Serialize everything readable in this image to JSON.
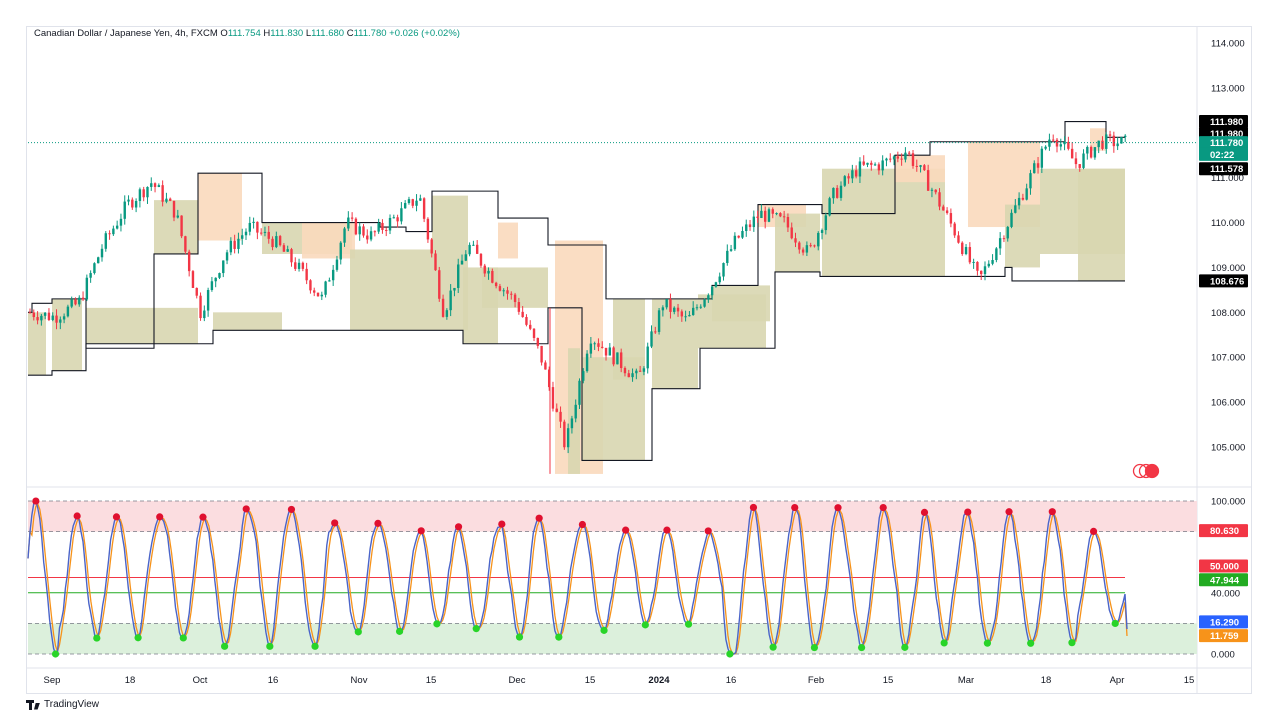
{
  "header": {
    "symbol": "Canadian Dollar / Japanese Yen, 4h, FXCM",
    "open_label": "O",
    "open": "111.754",
    "high_label": "H",
    "high": "111.830",
    "low_label": "L",
    "low": "111.680",
    "close_label": "C",
    "close": "111.780",
    "change": "+0.026 (+0.02%)"
  },
  "colors": {
    "bull": "#089981",
    "bear": "#f23645",
    "supply_zone": "#f9d9bc",
    "demand_zone": "#d8d6b0",
    "rsi_line": "#4a64c9",
    "signal_line": "#f7931a",
    "overbought_zone": "#fbdde0",
    "oversold_zone": "#dcf0dc",
    "midline_red": "#f23645",
    "midline_green": "#22ab22"
  },
  "price_axis": {
    "ticks": [
      "114.000",
      "113.000",
      "111.000",
      "110.000",
      "109.000",
      "108.000",
      "107.000",
      "106.000",
      "105.000"
    ],
    "tags": [
      {
        "text": "111.980",
        "bg": "#000000",
        "fg": "#ffffff",
        "value": 112.25
      },
      {
        "text": "111.980",
        "bg": "#000000",
        "fg": "#ffffff",
        "value": 111.98
      },
      {
        "text": "111.780",
        "bg": "#089981",
        "fg": "#ffffff",
        "value": 111.78
      },
      {
        "text": "02:22",
        "bg": "#089981",
        "fg": "#ffffff",
        "value": 111.52
      },
      {
        "text": "111.578",
        "bg": "#000000",
        "fg": "#ffffff",
        "value": 111.2
      },
      {
        "text": "108.676",
        "bg": "#000000",
        "fg": "#ffffff",
        "value": 108.7
      }
    ]
  },
  "osc_axis": {
    "ticks": [
      "100.000",
      "40.000",
      "0.000"
    ],
    "tags": [
      {
        "text": "80.630",
        "bg": "#f23645",
        "fg": "#ffffff",
        "value": 80.63
      },
      {
        "text": "50.000",
        "bg": "#f23645",
        "fg": "#ffffff",
        "value": 57.5
      },
      {
        "text": "47.944",
        "bg": "#22ab22",
        "fg": "#ffffff",
        "value": 48.5
      },
      {
        "text": "16.290",
        "bg": "#2962ff",
        "fg": "#ffffff",
        "value": 21.0
      },
      {
        "text": "11.759",
        "bg": "#f7931a",
        "fg": "#ffffff",
        "value": 12.0
      }
    ]
  },
  "time_axis": {
    "labels": [
      "Sep",
      "18",
      "Oct",
      "16",
      "Nov",
      "15",
      "Dec",
      "15",
      "2024",
      "16",
      "Feb",
      "15",
      "Mar",
      "18",
      "Apr",
      "15"
    ]
  },
  "chart_data": [
    {
      "type": "candlestick",
      "title": "Canadian Dollar / Japanese Yen, 4h, FXCM",
      "ylim": [
        104.4,
        114.3
      ],
      "x_labels": [
        "Sep",
        "18",
        "Oct",
        "16",
        "Nov",
        "15",
        "Dec",
        "15",
        "2024",
        "16",
        "Feb",
        "15",
        "Mar",
        "18",
        "Apr",
        "15"
      ],
      "approx_close_path": [
        108.0,
        107.9,
        108.2,
        109.5,
        110.4,
        110.9,
        110.2,
        108.0,
        109.3,
        109.9,
        109.6,
        109.0,
        108.3,
        110.0,
        109.7,
        110.1,
        110.6,
        108.0,
        109.5,
        108.8,
        108.2,
        107.0,
        105.0,
        107.5,
        107.0,
        106.5,
        108.2,
        107.8,
        108.6,
        109.6,
        110.2,
        110.0,
        109.3,
        110.6,
        111.2,
        111.3,
        111.6,
        110.8,
        109.8,
        108.7,
        109.8,
        110.9,
        112.0,
        111.3,
        111.8,
        111.78
      ],
      "last_price": 111.78,
      "range_high": 111.98,
      "range_low": 108.676
    },
    {
      "type": "line",
      "y_axis_ticks": [
        100,
        40,
        0
      ],
      "ylim": [
        0,
        100
      ],
      "levels": {
        "overbought": 80,
        "midline_red": 50,
        "midline_green": 40,
        "oversold": 20
      },
      "last_values": {
        "fast": 16.29,
        "slow": 11.759
      }
    }
  ]
}
